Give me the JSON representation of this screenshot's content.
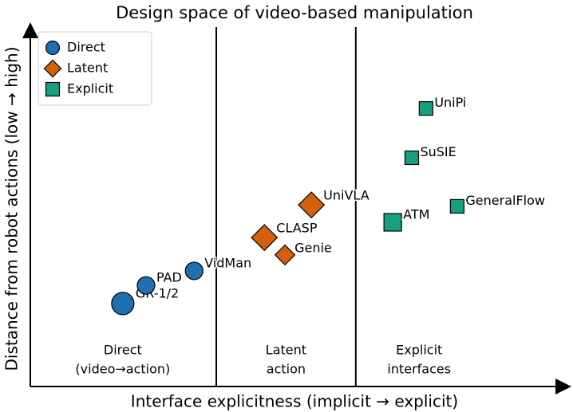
{
  "chart_data": {
    "type": "scatter",
    "title": "Design space of video-based manipulation",
    "x_label": "Interface explicitness (implicit → explicit)",
    "y_label": "Distance from robot actions (low → high)",
    "xlim": [
      0,
      10
    ],
    "ylim": [
      0,
      10
    ],
    "legend": "upper left",
    "regions": [
      {
        "labels": [
          "Direct",
          "(video→action)"
        ],
        "x": 1.75
      },
      {
        "labels": [
          "Latent",
          "action"
        ],
        "x": 4.84
      },
      {
        "labels": [
          "Explicit",
          "interfaces"
        ],
        "x": 7.36
      }
    ],
    "dividers": [
      3.52,
      6.16
    ],
    "series": [
      {
        "name": "Direct",
        "color": "#1f6fb2",
        "marker": "circle",
        "points": [
          "GR-1/2",
          "PAD",
          "VidMan"
        ],
        "x": [
          1.75,
          2.19,
          3.1
        ],
        "values": [
          2.34,
          2.85,
          3.26
        ],
        "sizes": [
          28,
          22,
          22
        ]
      },
      {
        "name": "Latent",
        "color": "#d2600c",
        "marker": "diamond",
        "points": [
          "CLASP",
          "Genie",
          "UniVLA"
        ],
        "x": [
          4.43,
          4.82,
          5.32
        ],
        "values": [
          4.2,
          3.71,
          5.12
        ],
        "sizes": [
          26,
          20,
          26
        ]
      },
      {
        "name": "Explicit",
        "color": "#169f80",
        "marker": "square",
        "points": [
          "ATM",
          "SuSIE",
          "UniPi",
          "GeneralFlow"
        ],
        "x": [
          6.86,
          7.22,
          7.49,
          8.08
        ],
        "values": [
          4.63,
          6.45,
          7.84,
          5.08
        ],
        "sizes": [
          22,
          17,
          17,
          17
        ]
      }
    ]
  }
}
